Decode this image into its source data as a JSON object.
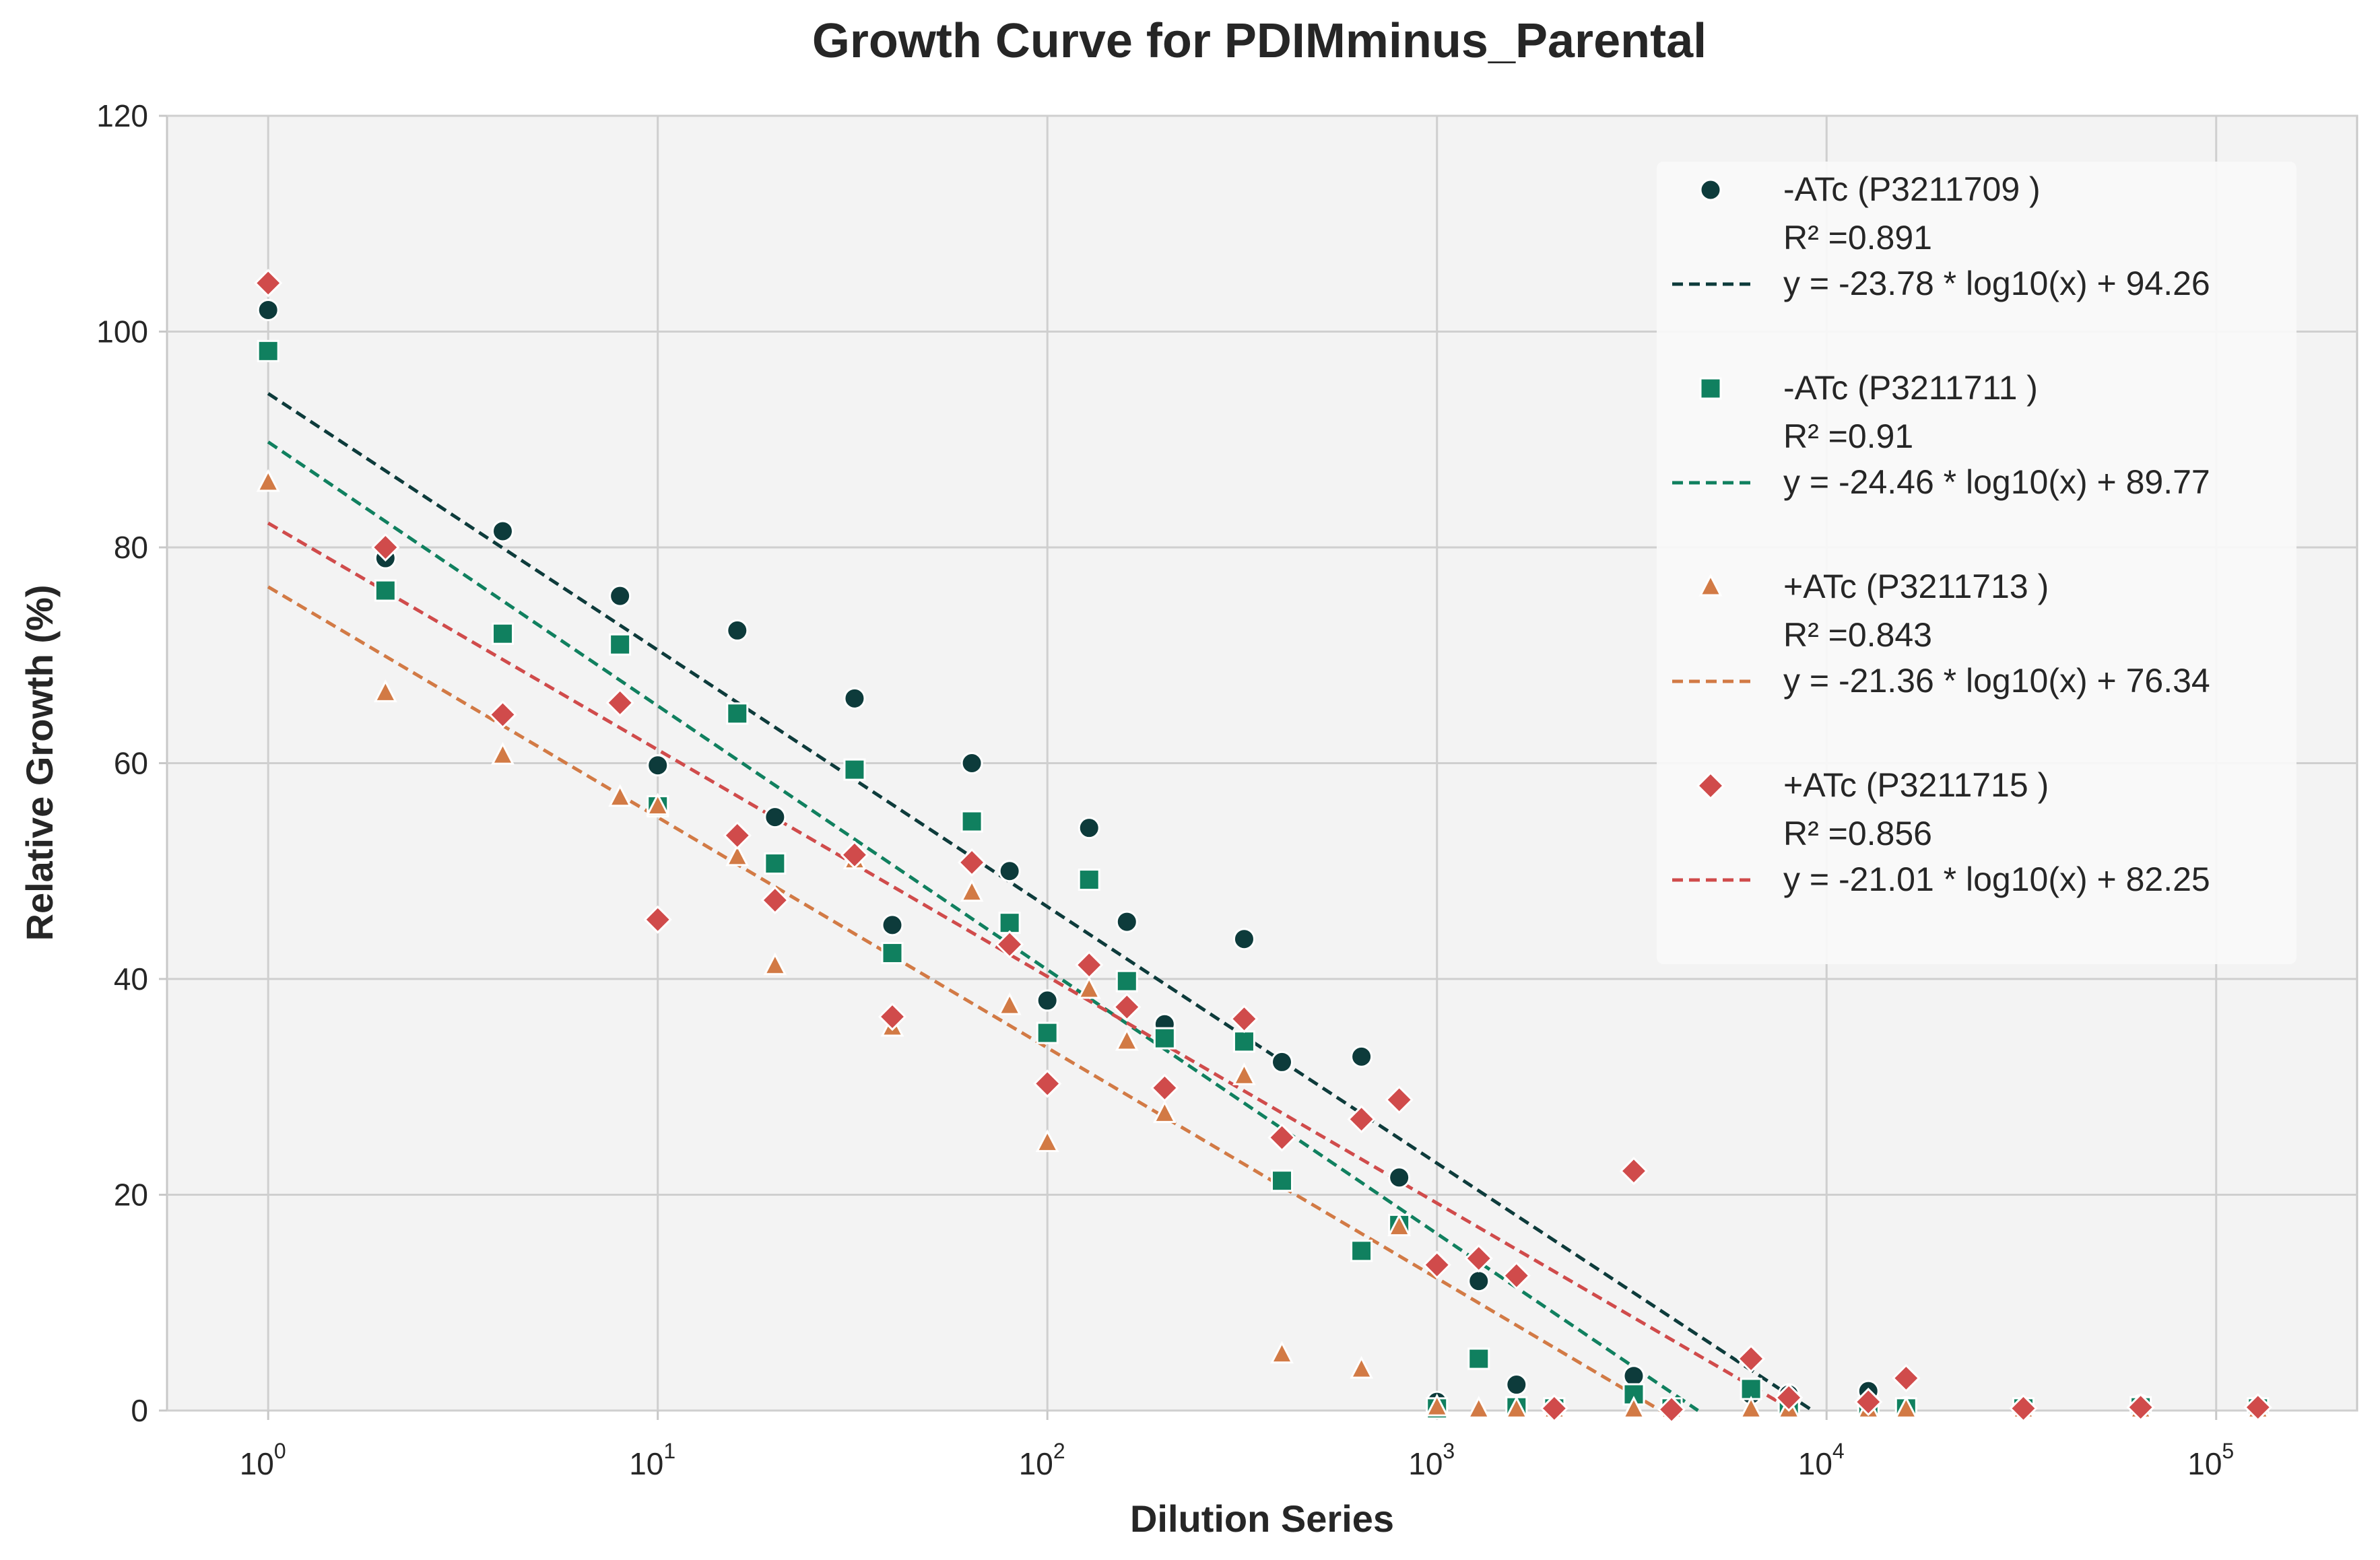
{
  "chart_data": {
    "type": "scatter",
    "title": "Growth Curve for PDIMminus_Parental",
    "xlabel": "Dilution Series",
    "ylabel": "Relative Growth (%)",
    "xscale": "log",
    "xlim": [
      0.55,
      230000
    ],
    "ylim": [
      0,
      120
    ],
    "grid": true,
    "legend_position": "top-right",
    "yticks": [
      "0",
      "20",
      "40",
      "60",
      "80",
      "100",
      "120"
    ],
    "xticks": [
      {
        "base": "10",
        "exp": "0"
      },
      {
        "base": "10",
        "exp": "1"
      },
      {
        "base": "10",
        "exp": "2"
      },
      {
        "base": "10",
        "exp": "3"
      },
      {
        "base": "10",
        "exp": "4"
      },
      {
        "base": "10",
        "exp": "5"
      }
    ],
    "series": [
      {
        "name": "-ATc (P3211709 )",
        "marker": "circle",
        "color": "#0d3b3b",
        "r2_label": "R² =0.891",
        "fit_label": "y = -23.78 * log10(x) + 94.26",
        "fit": {
          "slope": -23.78,
          "intercept": 94.26
        },
        "x": [
          1,
          2,
          4,
          8,
          10,
          16,
          20,
          32,
          40,
          64,
          80,
          100,
          128,
          160,
          200,
          320,
          400,
          640,
          800,
          1000,
          1280,
          1600,
          2000,
          3200,
          4000,
          6400,
          8000,
          12800,
          16000,
          32000,
          64000,
          128000
        ],
        "y": [
          102,
          79,
          81.5,
          75.5,
          59.8,
          72.3,
          55,
          66,
          45,
          60,
          50,
          38,
          54,
          45.3,
          35.8,
          43.7,
          32.3,
          32.8,
          21.6,
          0.8,
          12,
          2.4,
          0.2,
          3.2,
          0.2,
          1.5,
          1.5,
          1.8,
          0.3,
          0.2,
          0.5,
          0.3
        ]
      },
      {
        "name": "-ATc (P3211711 )",
        "marker": "square",
        "color": "#10805f",
        "r2_label": "R² =0.91",
        "fit_label": "y = -24.46 * log10(x) + 89.77",
        "fit": {
          "slope": -24.46,
          "intercept": 89.77
        },
        "x": [
          1,
          2,
          4,
          8,
          10,
          16,
          20,
          32,
          40,
          64,
          80,
          100,
          128,
          160,
          200,
          320,
          400,
          640,
          800,
          1000,
          1280,
          1600,
          2000,
          3200,
          4000,
          6400,
          8000,
          12800,
          16000,
          32000,
          64000,
          128000
        ],
        "y": [
          98.2,
          76,
          72,
          71,
          56,
          64.6,
          50.7,
          59.4,
          42.4,
          54.6,
          45.2,
          35,
          49.2,
          39.8,
          34.5,
          34.2,
          21.3,
          14.8,
          17.2,
          0.2,
          4.8,
          0.3,
          0.2,
          1.5,
          0.2,
          2,
          0.5,
          0.2,
          0.2,
          0.2,
          0.3,
          0.2
        ]
      },
      {
        "name": "+ATc (P3211713 )",
        "marker": "triangle",
        "color": "#d27a45",
        "r2_label": "R² =0.843",
        "fit_label": "y = -21.36 * log10(x) + 76.34",
        "fit": {
          "slope": -21.36,
          "intercept": 76.34
        },
        "x": [
          1,
          2,
          4,
          8,
          10,
          16,
          20,
          32,
          40,
          64,
          80,
          100,
          128,
          160,
          200,
          320,
          400,
          640,
          800,
          1000,
          1280,
          1600,
          2000,
          3200,
          4000,
          6400,
          8000,
          12800,
          16000,
          32000,
          64000,
          128000
        ],
        "y": [
          86,
          66.5,
          60.7,
          56.8,
          56,
          51.3,
          41.2,
          51,
          35.5,
          48,
          37.5,
          24.8,
          39,
          34.2,
          27.5,
          31,
          5.2,
          3.8,
          17,
          0.3,
          0.1,
          0.1,
          0.1,
          0.1,
          0.1,
          0.1,
          0.1,
          0.1,
          0.1,
          0.1,
          0.1,
          0.1
        ]
      },
      {
        "name": "+ATc (P3211715 )",
        "marker": "diamond",
        "color": "#d04b4b",
        "r2_label": "R² =0.856",
        "fit_label": "y = -21.01 * log10(x) + 82.25",
        "fit": {
          "slope": -21.01,
          "intercept": 82.25
        },
        "x": [
          1,
          2,
          4,
          8,
          10,
          16,
          20,
          32,
          40,
          64,
          80,
          100,
          128,
          160,
          200,
          320,
          400,
          640,
          800,
          1000,
          1280,
          1600,
          2000,
          3200,
          4000,
          6400,
          8000,
          12800,
          16000,
          32000,
          64000,
          128000
        ],
        "y": [
          104.5,
          80,
          64.5,
          65.6,
          45.5,
          53.3,
          47.3,
          51.5,
          36.5,
          50.8,
          43.2,
          30.3,
          41.3,
          37.4,
          29.9,
          36.3,
          25.3,
          27,
          28.8,
          13.5,
          14.1,
          12.5,
          0.2,
          22.2,
          0.1,
          4.8,
          1.2,
          0.8,
          3,
          0.2,
          0.3,
          0.3
        ]
      }
    ]
  }
}
